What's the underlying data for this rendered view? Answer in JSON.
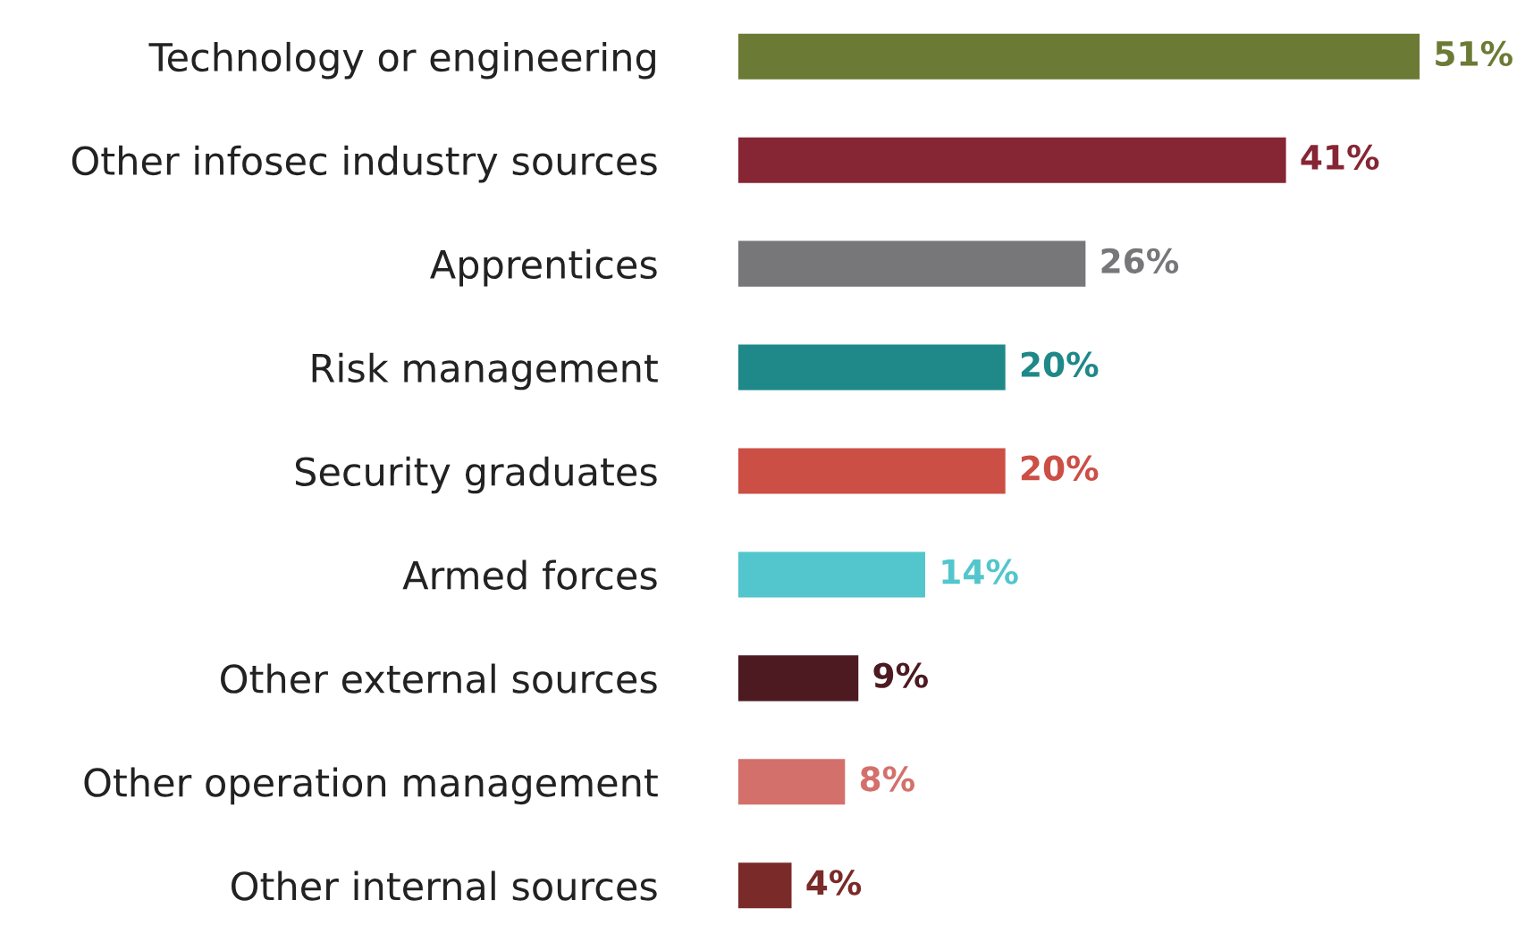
{
  "chart_data": {
    "type": "bar",
    "orientation": "horizontal",
    "categories": [
      "Technology or engineering",
      "Other infosec industry sources",
      "Apprentices",
      "Risk management",
      "Security graduates",
      "Armed forces",
      "Other external sources",
      "Other operation management",
      "Other internal sources"
    ],
    "values": [
      51,
      41,
      26,
      20,
      20,
      14,
      9,
      8,
      4
    ],
    "value_labels": [
      "51%",
      "41%",
      "26%",
      "20%",
      "20%",
      "14%",
      "9%",
      "8%",
      "4%"
    ],
    "colors": [
      "#6b7a35",
      "#862634",
      "#77777a",
      "#1f8888",
      "#cc4f45",
      "#52c6cc",
      "#4d1a22",
      "#d4706b",
      "#7a2a28"
    ],
    "grid": false,
    "legend": false
  }
}
